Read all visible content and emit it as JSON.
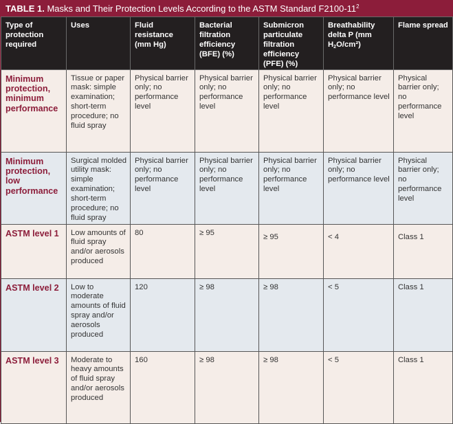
{
  "title": {
    "label": "TABLE 1.",
    "text": "Masks and Their Protection Levels According to the ASTM Standard F2100-11",
    "footnote": "2"
  },
  "headers": {
    "type": "Type of protection required",
    "uses": "Uses",
    "fluid": "Fluid resistance (mm Hg)",
    "bfe": "Bacterial filtration efficiency (BFE) (%)",
    "pfe": "Submicron particulate filtration efficiency (PFE) (%)",
    "breath_prefix": "Breathability delta P (mm H",
    "breath_sub": "2",
    "breath_suffix": "O/cm²)",
    "flame": "Flame spread"
  },
  "rows": [
    {
      "type": "Minimum protection, minimum performance",
      "uses": "Tissue or paper mask: simple examination; short-term procedure; no fluid spray",
      "fluid": "Physical barrier only; no performance level",
      "bfe": "Physical barrier only; no performance level",
      "pfe": "Physical barrier only; no performance level",
      "breath": "Physical barrier only; no performance level",
      "flame": "Physical barrier only; no performance level"
    },
    {
      "type": "Minimum protection, low performance",
      "uses": "Surgical molded utility mask: simple examination; short-term procedure; no fluid spray",
      "fluid": "Physical barrier only; no performance level",
      "bfe": "Physical barrier only; no performance level",
      "pfe": "Physical barrier only; no performance level",
      "breath": "Physical barrier only; no performance level",
      "flame": "Physical barrier only; no performance level"
    },
    {
      "type": "ASTM level 1",
      "uses": "Low amounts of fluid spray and/or aerosols produced",
      "fluid": "80",
      "bfe": "≥ 95",
      "pfe": "≥ 95",
      "breath": "< 4",
      "flame": "Class 1"
    },
    {
      "type": "ASTM level 2",
      "uses": "Low to moderate amounts of fluid spray and/or aerosols produced",
      "fluid": "120",
      "bfe": "≥ 98",
      "pfe": "≥ 98",
      "breath": "< 5",
      "flame": "Class 1"
    },
    {
      "type": "ASTM level 3",
      "uses": "Moderate to heavy amounts of fluid spray and/or aerosols produced",
      "fluid": "160",
      "bfe": "≥ 98",
      "pfe": "≥ 98",
      "breath": "< 5",
      "flame": "Class 1"
    }
  ],
  "colors": {
    "accent": "#8c1d3a",
    "header_bg": "#231f20",
    "row_a": "#f5ede8",
    "row_b": "#e4e9ee"
  }
}
